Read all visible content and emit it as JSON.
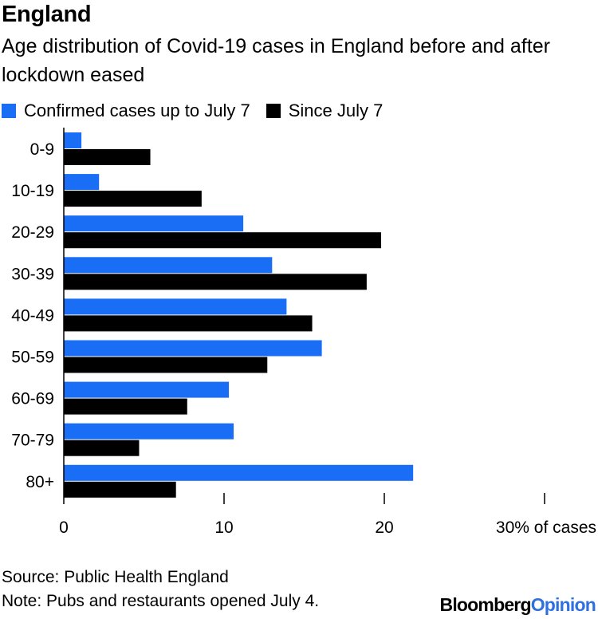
{
  "header": {
    "title": "England",
    "subtitle": "Age distribution of Covid-19 cases in England before and after lockdown eased"
  },
  "chart_data": {
    "type": "bar",
    "orientation": "horizontal",
    "categories": [
      "0-9",
      "10-19",
      "20-29",
      "30-39",
      "40-49",
      "50-59",
      "60-69",
      "70-79",
      "80+"
    ],
    "series": [
      {
        "name": "Confirmed cases up to July 7",
        "color": "#1a6df5",
        "values": [
          1.1,
          2.2,
          11.2,
          13.0,
          13.9,
          16.1,
          10.3,
          10.6,
          21.8
        ]
      },
      {
        "name": "Since July 7",
        "color": "#000000",
        "values": [
          5.4,
          8.6,
          19.8,
          18.9,
          15.5,
          12.7,
          7.7,
          4.7,
          7.0
        ]
      }
    ],
    "xlim": [
      0,
      30
    ],
    "ticks": [
      0,
      10,
      20,
      30
    ],
    "tick_labels": [
      "0",
      "10",
      "20",
      "30% of cases"
    ],
    "legend_position": "top-left"
  },
  "footer": {
    "source": "Source: Public Health England",
    "note": "Note: Pubs and restaurants opened July 4.",
    "brand_part1": "Bloomberg",
    "brand_part2": "Opinion"
  }
}
